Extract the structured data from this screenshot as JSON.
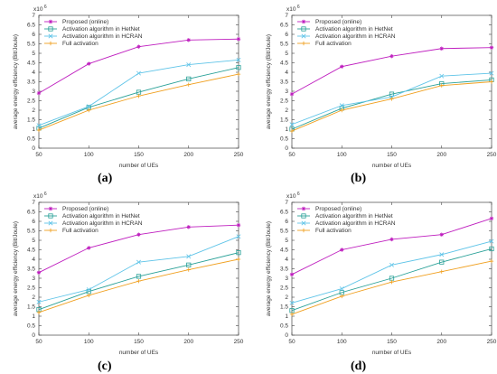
{
  "common": {
    "xlabel": "number of UEs",
    "ylabel": "average energy efficiency (Bit/Joule)",
    "exponent": "x10",
    "exponent_power": "6",
    "xticks": [
      50,
      100,
      150,
      200,
      250
    ],
    "yticks": [
      "0",
      "0.5",
      "1",
      "1.5",
      "2",
      "2.5",
      "3",
      "3.5",
      "4",
      "4.5",
      "5",
      "5.5",
      "6",
      "6.5",
      "7"
    ],
    "colors": [
      "#bf1fbf",
      "#2aa198",
      "#5fc4e8",
      "#f0a020"
    ],
    "markers": [
      "star",
      "square",
      "x",
      "plus"
    ]
  },
  "captions": [
    "(a)",
    "(b)",
    "(c)",
    "(d)"
  ],
  "chart_data": [
    {
      "type": "line",
      "x": [
        50,
        100,
        150,
        200,
        250
      ],
      "xlim": [
        50,
        250
      ],
      "ylim": [
        0,
        7
      ],
      "legend_position": "top-left",
      "series": [
        {
          "name": "Proposed (online)",
          "values": [
            2.9,
            4.45,
            5.35,
            5.7,
            5.75
          ]
        },
        {
          "name": "Activation algorithm in HetNet",
          "values": [
            1.05,
            2.15,
            2.95,
            3.65,
            4.25
          ]
        },
        {
          "name": "Activation algorithm in HCRAN",
          "values": [
            1.2,
            2.2,
            3.95,
            4.4,
            4.65
          ]
        },
        {
          "name": "Full activation",
          "values": [
            0.95,
            2.0,
            2.75,
            3.35,
            3.9
          ]
        }
      ]
    },
    {
      "type": "line",
      "x": [
        50,
        100,
        150,
        200,
        250
      ],
      "xlim": [
        50,
        250
      ],
      "ylim": [
        0,
        7
      ],
      "legend_position": "top-left",
      "series": [
        {
          "name": "Proposed (online)",
          "values": [
            2.85,
            4.3,
            4.85,
            5.25,
            5.3
          ]
        },
        {
          "name": "Activation algorithm in HetNet",
          "values": [
            1.0,
            2.1,
            2.85,
            3.4,
            3.6
          ]
        },
        {
          "name": "Activation algorithm in HCRAN",
          "values": [
            1.25,
            2.25,
            2.7,
            3.8,
            3.95
          ]
        },
        {
          "name": "Full activation",
          "values": [
            0.9,
            2.0,
            2.6,
            3.3,
            3.5
          ]
        }
      ]
    },
    {
      "type": "line",
      "x": [
        50,
        100,
        150,
        200,
        250
      ],
      "xlim": [
        50,
        250
      ],
      "ylim": [
        0,
        7
      ],
      "legend_position": "top-left",
      "series": [
        {
          "name": "Proposed (online)",
          "values": [
            3.3,
            4.6,
            5.3,
            5.7,
            5.8
          ]
        },
        {
          "name": "Activation algorithm in HetNet",
          "values": [
            1.35,
            2.3,
            3.1,
            3.7,
            4.35
          ]
        },
        {
          "name": "Activation algorithm in HCRAN",
          "values": [
            1.75,
            2.4,
            3.85,
            4.15,
            5.2
          ]
        },
        {
          "name": "Full activation",
          "values": [
            1.2,
            2.1,
            2.85,
            3.45,
            4.0
          ]
        }
      ]
    },
    {
      "type": "line",
      "x": [
        50,
        100,
        150,
        200,
        250
      ],
      "xlim": [
        50,
        250
      ],
      "ylim": [
        0,
        7
      ],
      "legend_position": "top-left",
      "series": [
        {
          "name": "Proposed (online)",
          "values": [
            3.2,
            4.5,
            5.05,
            5.3,
            6.15
          ]
        },
        {
          "name": "Activation algorithm in HetNet",
          "values": [
            1.3,
            2.25,
            3.0,
            3.85,
            4.55
          ]
        },
        {
          "name": "Activation algorithm in HCRAN",
          "values": [
            1.7,
            2.45,
            3.7,
            4.25,
            4.95
          ]
        },
        {
          "name": "Full activation",
          "values": [
            1.1,
            2.05,
            2.8,
            3.35,
            3.9
          ]
        }
      ]
    }
  ]
}
